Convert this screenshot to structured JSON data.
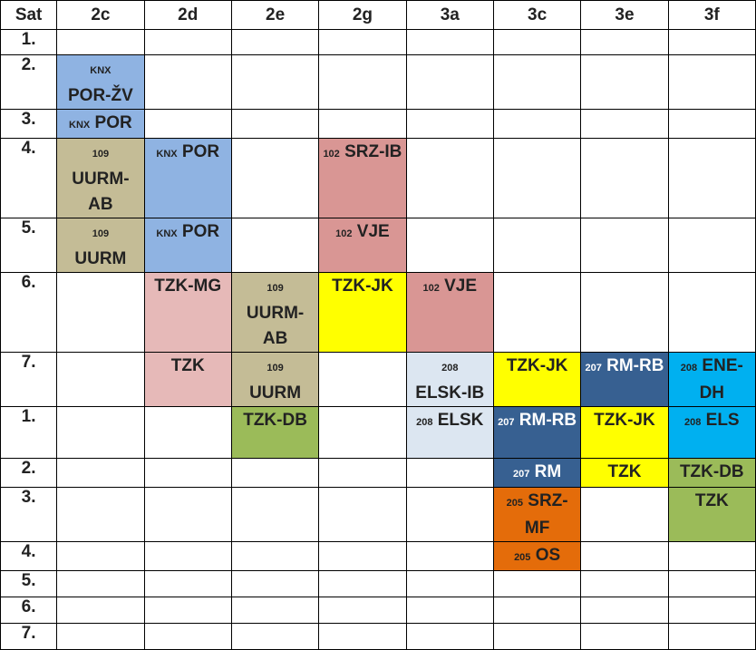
{
  "header": [
    "Sat",
    "2c",
    "2d",
    "2e",
    "2g",
    "3a",
    "3c",
    "3e",
    "3f"
  ],
  "rows": [
    {
      "label": "1.",
      "cells": []
    },
    {
      "label": "2.",
      "cells": [
        {
          "col": 1,
          "rowspan": 1,
          "room": "KNX",
          "text": "POR-ŽV",
          "color": "#8fb3e2",
          "room_own_line": true
        }
      ]
    },
    {
      "label": "3.",
      "cells": [
        {
          "col": 1,
          "rowspan": 1,
          "room": "KNX",
          "text": "POR",
          "color": "#8fb3e2"
        }
      ]
    },
    {
      "label": "4.",
      "cells": [
        {
          "col": 1,
          "rowspan": 1,
          "room": "109",
          "text": "UURM-AB",
          "color": "#c4bc96",
          "room_own_line": true
        },
        {
          "col": 2,
          "rowspan": 1,
          "room": "KNX",
          "text": "POR",
          "color": "#8fb3e2"
        },
        {
          "col": 4,
          "rowspan": 1,
          "room": "102",
          "text": "SRZ-IB",
          "color": "#d99694"
        }
      ]
    },
    {
      "label": "5.",
      "cells": [
        {
          "col": 1,
          "rowspan": 1,
          "room": "109",
          "text": "UURM",
          "color": "#c4bc96",
          "room_own_line": true
        },
        {
          "col": 2,
          "rowspan": 1,
          "room": "KNX",
          "text": "POR",
          "color": "#8fb3e2"
        },
        {
          "col": 4,
          "rowspan": 1,
          "room": "102",
          "text": "VJE",
          "color": "#d99694"
        }
      ]
    },
    {
      "label": "6.",
      "cells": [
        {
          "col": 2,
          "rowspan": 1,
          "room": "",
          "text": "TZK-MG",
          "color": "#e6b9b8"
        },
        {
          "col": 3,
          "rowspan": 1,
          "room": "109",
          "text": "UURM-AB",
          "color": "#c4bc96",
          "room_own_line": true
        },
        {
          "col": 4,
          "rowspan": 1,
          "room": "",
          "text": "TZK-JK",
          "color": "#ffff00"
        },
        {
          "col": 5,
          "rowspan": 1,
          "room": "102",
          "text": "VJE",
          "color": "#d99694"
        }
      ]
    },
    {
      "label": "7.",
      "cells": [
        {
          "col": 2,
          "rowspan": 1,
          "room": "",
          "text": "TZK",
          "color": "#e6b9b8"
        },
        {
          "col": 3,
          "rowspan": 1,
          "room": "109",
          "text": "UURM",
          "color": "#c4bc96",
          "room_own_line": true
        },
        {
          "col": 5,
          "rowspan": 1,
          "room": "208",
          "text": "ELSK-IB",
          "color": "#dce6f1",
          "room_own_line": true
        },
        {
          "col": 6,
          "rowspan": 1,
          "room": "",
          "text": "TZK-JK",
          "color": "#ffff00"
        },
        {
          "col": 7,
          "rowspan": 1,
          "room": "207",
          "text": "RM-RB",
          "color": "#376091",
          "dark": true
        },
        {
          "col": 8,
          "rowspan": 1,
          "room": "208",
          "text": "ENE-DH",
          "color": "#00b0f0"
        }
      ]
    },
    {
      "label": "1.",
      "cells": [
        {
          "col": 3,
          "rowspan": 1,
          "room": "",
          "text": "TZK-DB",
          "color": "#9bbb59"
        },
        {
          "col": 5,
          "rowspan": 1,
          "room": "208",
          "text": "ELSK",
          "color": "#dce6f1"
        },
        {
          "col": 6,
          "rowspan": 1,
          "room": "207",
          "text": "RM-RB",
          "color": "#376091",
          "dark": true
        },
        {
          "col": 7,
          "rowspan": 1,
          "room": "",
          "text": "TZK-JK",
          "color": "#ffff00"
        },
        {
          "col": 8,
          "rowspan": 1,
          "room": "208",
          "text": "ELS",
          "color": "#00b0f0"
        }
      ]
    },
    {
      "label": "2.",
      "cells": [
        {
          "col": 6,
          "rowspan": 1,
          "room": "207",
          "text": "RM",
          "color": "#376091",
          "dark": true
        },
        {
          "col": 7,
          "rowspan": 1,
          "room": "",
          "text": "TZK",
          "color": "#ffff00"
        },
        {
          "col": 8,
          "rowspan": 1,
          "room": "",
          "text": "TZK-DB",
          "color": "#9bbb59"
        }
      ]
    },
    {
      "label": "3.",
      "cells": [
        {
          "col": 6,
          "rowspan": 1,
          "room": "205",
          "text": "SRZ-MF",
          "color": "#e46c0a"
        },
        {
          "col": 8,
          "rowspan": 1,
          "room": "",
          "text": "TZK",
          "color": "#9bbb59"
        }
      ]
    },
    {
      "label": "4.",
      "cells": [
        {
          "col": 6,
          "rowspan": 1,
          "room": "205",
          "text": "OS",
          "color": "#e46c0a"
        }
      ]
    },
    {
      "label": "5.",
      "cells": []
    },
    {
      "label": "6.",
      "cells": []
    },
    {
      "label": "7.",
      "cells": []
    }
  ]
}
